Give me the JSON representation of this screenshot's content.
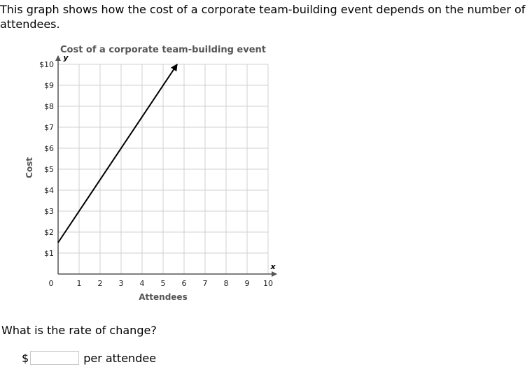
{
  "prompt": "This graph shows how the cost of a corporate team-building event depends on the number of attendees.",
  "question": "What is the rate of change?",
  "answer": {
    "currency_symbol": "$",
    "input_value": "",
    "unit_label": "per attendee"
  },
  "chart_data": {
    "type": "line",
    "title": "Cost of a corporate team-building event",
    "xlabel": "Attendees",
    "ylabel": "Cost",
    "x_axis_letter": "x",
    "y_axis_letter": "y",
    "xlim": [
      0,
      10
    ],
    "ylim": [
      0,
      10
    ],
    "x_ticks": [
      0,
      1,
      2,
      3,
      4,
      5,
      6,
      7,
      8,
      9,
      10
    ],
    "x_tick_labels": [
      "0",
      "1",
      "2",
      "3",
      "4",
      "5",
      "6",
      "7",
      "8",
      "9",
      "10"
    ],
    "y_ticks": [
      1,
      2,
      3,
      4,
      5,
      6,
      7,
      8,
      9,
      10
    ],
    "y_tick_labels": [
      "$1",
      "$2",
      "$3",
      "$4",
      "$5",
      "$6",
      "$7",
      "$8",
      "$9",
      "$10"
    ],
    "grid": true,
    "series": [
      {
        "x": [
          0,
          5.67
        ],
        "y": [
          1.5,
          10
        ],
        "arrow_end": true
      }
    ],
    "colors": {
      "line": "#000000",
      "grid": "#d0d0d0",
      "axis": "#555555",
      "title": "#555555"
    }
  }
}
